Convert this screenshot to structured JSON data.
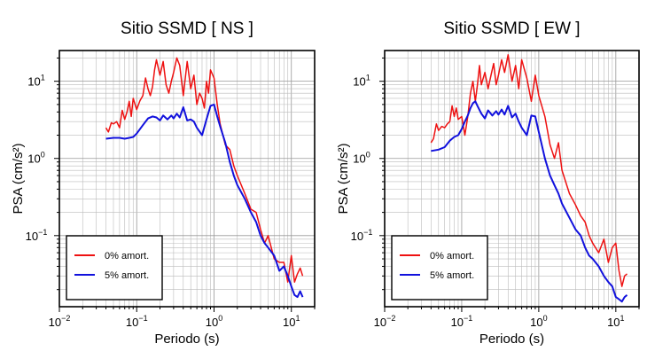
{
  "chart_data": [
    {
      "type": "line",
      "title": "Sitio SSMD [ NS ]",
      "xlabel": "Periodo (s)",
      "ylabel": "PSA (cm/s²)",
      "xscale": "log",
      "yscale": "log",
      "xlim": [
        0.01,
        20
      ],
      "ylim": [
        0.012,
        25
      ],
      "grid": true,
      "legend_position": "bottom-left",
      "x_ticks": [
        {
          "base": "10",
          "exp": "−2",
          "value": 0.01
        },
        {
          "base": "10",
          "exp": "−1",
          "value": 0.1
        },
        {
          "base": "10",
          "exp": "0",
          "value": 1
        },
        {
          "base": "10",
          "exp": "1",
          "value": 10
        }
      ],
      "y_ticks": [
        {
          "base": "10",
          "exp": "−1",
          "value": 0.1
        },
        {
          "base": "10",
          "exp": "0",
          "value": 1
        },
        {
          "base": "10",
          "exp": "1",
          "value": 10
        }
      ],
      "series": [
        {
          "name": "0% amort.",
          "color": "#ee1111",
          "x": [
            0.04,
            0.043,
            0.047,
            0.05,
            0.055,
            0.06,
            0.065,
            0.07,
            0.075,
            0.08,
            0.085,
            0.09,
            0.1,
            0.11,
            0.12,
            0.13,
            0.14,
            0.15,
            0.16,
            0.17,
            0.18,
            0.2,
            0.22,
            0.24,
            0.26,
            0.28,
            0.3,
            0.33,
            0.36,
            0.4,
            0.45,
            0.5,
            0.55,
            0.6,
            0.65,
            0.7,
            0.75,
            0.8,
            0.85,
            0.9,
            1.0,
            1.1,
            1.2,
            1.4,
            1.6,
            1.8,
            2.0,
            2.5,
            3.0,
            3.5,
            4.0,
            4.5,
            5.0,
            6.0,
            7.0,
            8.0,
            9.0,
            10.0,
            11.0,
            12.0,
            13.0,
            14.0
          ],
          "y": [
            2.5,
            2.2,
            2.9,
            2.8,
            3.0,
            2.5,
            4.2,
            3.2,
            4.0,
            5.5,
            3.5,
            6.0,
            4.3,
            5.6,
            6.5,
            11.0,
            8.0,
            6.5,
            8.5,
            14.0,
            19.0,
            12.0,
            18.0,
            9.0,
            7.0,
            10.0,
            13.0,
            20.0,
            16.0,
            6.5,
            18.0,
            8.0,
            12.0,
            5.0,
            7.0,
            6.0,
            4.5,
            10.0,
            7.0,
            14.0,
            11.0,
            5.0,
            2.8,
            1.5,
            1.3,
            0.8,
            0.6,
            0.35,
            0.22,
            0.2,
            0.12,
            0.08,
            0.1,
            0.05,
            0.045,
            0.045,
            0.025,
            0.055,
            0.025,
            0.032,
            0.038,
            0.03
          ]
        },
        {
          "name": "5% amort.",
          "color": "#1111dd",
          "x": [
            0.04,
            0.05,
            0.06,
            0.07,
            0.08,
            0.09,
            0.1,
            0.12,
            0.14,
            0.16,
            0.18,
            0.2,
            0.22,
            0.25,
            0.28,
            0.3,
            0.33,
            0.36,
            0.4,
            0.45,
            0.5,
            0.55,
            0.6,
            0.7,
            0.8,
            0.9,
            1.0,
            1.1,
            1.2,
            1.4,
            1.6,
            1.8,
            2.0,
            2.5,
            3.0,
            3.5,
            4.0,
            4.5,
            5.0,
            6.0,
            7.0,
            8.0,
            9.0,
            10.0,
            11.0,
            12.0,
            13.0,
            14.0
          ],
          "y": [
            1.8,
            1.85,
            1.85,
            1.8,
            1.85,
            1.9,
            2.1,
            2.7,
            3.3,
            3.5,
            3.4,
            3.1,
            3.6,
            3.2,
            3.6,
            3.3,
            3.8,
            3.4,
            4.6,
            3.1,
            3.2,
            3.0,
            2.5,
            2.0,
            3.2,
            4.8,
            5.0,
            3.5,
            2.6,
            1.6,
            0.9,
            0.6,
            0.45,
            0.3,
            0.2,
            0.15,
            0.1,
            0.08,
            0.07,
            0.055,
            0.035,
            0.04,
            0.03,
            0.022,
            0.017,
            0.016,
            0.019,
            0.016
          ]
        }
      ]
    },
    {
      "type": "line",
      "title": "Sitio SSMD [ EW ]",
      "xlabel": "Periodo (s)",
      "ylabel": "PSA (cm/s²)",
      "xscale": "log",
      "yscale": "log",
      "xlim": [
        0.01,
        20
      ],
      "ylim": [
        0.012,
        25
      ],
      "grid": true,
      "legend_position": "bottom-left",
      "x_ticks": [
        {
          "base": "10",
          "exp": "−2",
          "value": 0.01
        },
        {
          "base": "10",
          "exp": "−1",
          "value": 0.1
        },
        {
          "base": "10",
          "exp": "0",
          "value": 1
        },
        {
          "base": "10",
          "exp": "1",
          "value": 10
        }
      ],
      "y_ticks": [
        {
          "base": "10",
          "exp": "−1",
          "value": 0.1
        },
        {
          "base": "10",
          "exp": "0",
          "value": 1
        },
        {
          "base": "10",
          "exp": "1",
          "value": 10
        }
      ],
      "series": [
        {
          "name": "0% amort.",
          "color": "#ee1111",
          "x": [
            0.04,
            0.043,
            0.047,
            0.05,
            0.055,
            0.06,
            0.065,
            0.07,
            0.075,
            0.08,
            0.085,
            0.09,
            0.1,
            0.11,
            0.12,
            0.13,
            0.14,
            0.15,
            0.16,
            0.17,
            0.18,
            0.2,
            0.22,
            0.24,
            0.26,
            0.28,
            0.3,
            0.33,
            0.36,
            0.4,
            0.45,
            0.5,
            0.55,
            0.6,
            0.7,
            0.8,
            0.9,
            1.0,
            1.2,
            1.4,
            1.6,
            1.8,
            2.0,
            2.5,
            3.0,
            3.5,
            4.0,
            4.5,
            5.0,
            6.0,
            7.0,
            8.0,
            9.0,
            10.0,
            11.0,
            12.0,
            13.0,
            14.0
          ],
          "y": [
            1.6,
            1.8,
            2.8,
            2.3,
            2.6,
            2.5,
            2.8,
            3.0,
            4.8,
            3.5,
            4.5,
            3.2,
            3.5,
            2.0,
            3.5,
            7.0,
            10.0,
            5.5,
            9.0,
            16.0,
            9.0,
            13.0,
            8.0,
            12.0,
            17.0,
            9.0,
            12.0,
            19.0,
            13.0,
            22.0,
            10.0,
            16.0,
            8.0,
            19.0,
            11.0,
            5.5,
            12.0,
            6.5,
            3.5,
            1.5,
            1.0,
            1.6,
            0.7,
            0.35,
            0.25,
            0.18,
            0.15,
            0.1,
            0.08,
            0.06,
            0.09,
            0.045,
            0.07,
            0.08,
            0.035,
            0.022,
            0.03,
            0.032
          ]
        },
        {
          "name": "5% amort.",
          "color": "#1111dd",
          "x": [
            0.04,
            0.05,
            0.06,
            0.07,
            0.08,
            0.09,
            0.1,
            0.11,
            0.12,
            0.13,
            0.14,
            0.15,
            0.16,
            0.18,
            0.2,
            0.22,
            0.25,
            0.28,
            0.3,
            0.33,
            0.36,
            0.4,
            0.45,
            0.5,
            0.55,
            0.6,
            0.7,
            0.8,
            0.9,
            1.0,
            1.2,
            1.4,
            1.6,
            1.8,
            2.0,
            2.5,
            3.0,
            3.5,
            4.0,
            4.5,
            5.0,
            6.0,
            7.0,
            8.0,
            9.0,
            10.0,
            11.0,
            12.0,
            13.0,
            14.0
          ],
          "y": [
            1.25,
            1.3,
            1.4,
            1.7,
            1.9,
            2.0,
            2.4,
            3.0,
            3.6,
            4.5,
            5.2,
            5.5,
            4.8,
            3.8,
            3.3,
            4.2,
            3.6,
            4.1,
            3.7,
            4.3,
            3.7,
            4.8,
            3.4,
            3.8,
            3.0,
            2.5,
            2.0,
            3.6,
            3.5,
            2.2,
            1.0,
            0.6,
            0.45,
            0.35,
            0.26,
            0.17,
            0.12,
            0.1,
            0.07,
            0.055,
            0.05,
            0.04,
            0.03,
            0.025,
            0.022,
            0.016,
            0.015,
            0.014,
            0.016,
            0.017
          ]
        }
      ]
    }
  ]
}
